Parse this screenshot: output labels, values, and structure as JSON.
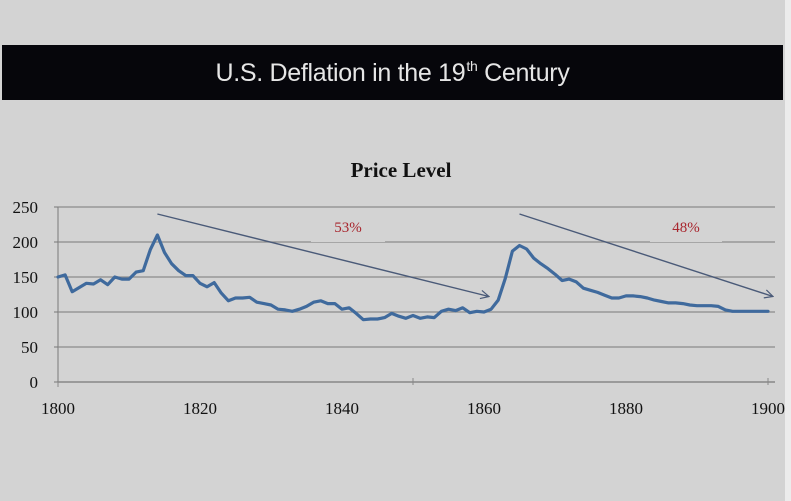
{
  "slide": {
    "title_main": "U.S. Deflation in the 19",
    "title_sup": "th",
    "title_end": " Century"
  },
  "colors": {
    "background": "#d3d3d3",
    "title_band": "#06060b",
    "title_text": "#e6e6e6",
    "line": "#3f6a9d",
    "arrow": "#4a5a78",
    "annotation": "#a8262e",
    "grid": "#8c8c8c"
  },
  "chart_data": {
    "type": "line",
    "title": "Price Level",
    "xlabel": "",
    "ylabel": "",
    "xlim": [
      1800,
      1900
    ],
    "ylim": [
      0,
      250
    ],
    "grid": true,
    "legend": "none",
    "x_ticks": [
      "1800",
      "1820",
      "1840",
      "1860",
      "1880",
      "1900"
    ],
    "y_ticks": [
      "0",
      "50",
      "100",
      "150",
      "200",
      "250"
    ],
    "series": [
      {
        "name": "Price Level",
        "x": [
          1800,
          1801,
          1802,
          1803,
          1804,
          1805,
          1806,
          1807,
          1808,
          1809,
          1810,
          1811,
          1812,
          1813,
          1814,
          1815,
          1816,
          1817,
          1818,
          1819,
          1820,
          1821,
          1822,
          1823,
          1824,
          1825,
          1826,
          1827,
          1828,
          1829,
          1830,
          1831,
          1832,
          1833,
          1834,
          1835,
          1836,
          1837,
          1838,
          1839,
          1840,
          1841,
          1842,
          1843,
          1844,
          1845,
          1846,
          1847,
          1848,
          1849,
          1850,
          1851,
          1852,
          1853,
          1854,
          1855,
          1856,
          1857,
          1858,
          1859,
          1860,
          1861,
          1862,
          1863,
          1864,
          1865,
          1866,
          1867,
          1868,
          1869,
          1870,
          1871,
          1872,
          1873,
          1874,
          1875,
          1876,
          1877,
          1878,
          1879,
          1880,
          1881,
          1882,
          1883,
          1884,
          1885,
          1886,
          1887,
          1888,
          1889,
          1890,
          1891,
          1892,
          1893,
          1894,
          1895,
          1896,
          1897,
          1898,
          1899,
          1900
        ],
        "values": [
          150,
          153,
          129,
          135,
          141,
          140,
          146,
          139,
          150,
          147,
          147,
          157,
          159,
          189,
          210,
          185,
          169,
          159,
          152,
          152,
          141,
          136,
          142,
          127,
          116,
          120,
          120,
          121,
          114,
          112,
          110,
          104,
          103,
          101,
          104,
          108,
          114,
          116,
          112,
          112,
          104,
          106,
          98,
          89,
          90,
          90,
          92,
          98,
          94,
          91,
          95,
          91,
          93,
          92,
          101,
          104,
          102,
          106,
          99,
          101,
          100,
          104,
          117,
          148,
          187,
          195,
          190,
          177,
          169,
          162,
          154,
          145,
          147,
          143,
          134,
          131,
          128,
          124,
          120,
          120,
          123,
          123,
          122,
          120,
          117,
          115,
          113,
          113,
          112,
          110,
          109,
          109,
          109,
          108,
          103,
          101,
          101,
          101,
          101,
          101,
          101
        ]
      }
    ],
    "annotations": [
      {
        "text": "53%",
        "from_x": 1814,
        "from_y": 240,
        "to_x": 1860,
        "to_y": 125
      },
      {
        "text": "48%",
        "from_x": 1865,
        "from_y": 240,
        "to_x": 1900,
        "to_y": 125
      }
    ]
  }
}
